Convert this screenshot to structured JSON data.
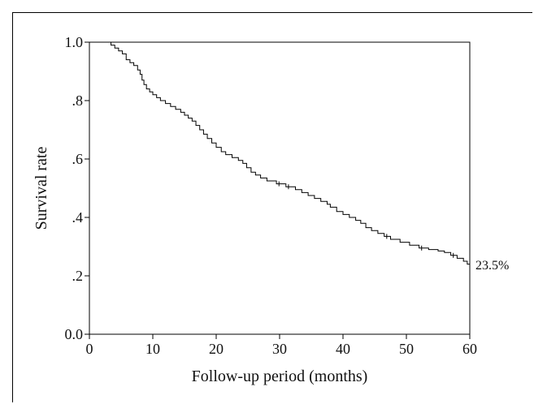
{
  "chart_data": {
    "type": "line",
    "title": "",
    "xlabel": "Follow-up period (months)",
    "ylabel": "Survival rate",
    "xlim": [
      0,
      60
    ],
    "ylim": [
      0,
      1
    ],
    "x_ticks": [
      0,
      10,
      20,
      30,
      40,
      50,
      60
    ],
    "x_tick_labels": [
      "0",
      "10",
      "20",
      "30",
      "40",
      "50",
      "60"
    ],
    "y_ticks": [
      0,
      0.2,
      0.4,
      0.6,
      0.8,
      1.0
    ],
    "y_tick_labels": [
      "0.0",
      ".2",
      ".4",
      ".6",
      ".8",
      "1.0"
    ],
    "grid": false,
    "annotation": {
      "text": "23.5%",
      "x": 60,
      "y": 0.235
    },
    "series": [
      {
        "step": true,
        "x": [
          0,
          2.8,
          3.4,
          4.0,
          4.6,
          5.2,
          5.8,
          6.4,
          7.0,
          7.6,
          8.0,
          8.3,
          8.6,
          9.0,
          9.5,
          10.0,
          10.6,
          11.2,
          12.0,
          12.8,
          13.6,
          14.4,
          15.0,
          15.6,
          16.2,
          16.8,
          17.4,
          18.0,
          18.6,
          19.3,
          20.0,
          20.8,
          21.5,
          22.5,
          23.5,
          24.2,
          24.8,
          25.5,
          26.2,
          27.0,
          28.0,
          29.5,
          31.0,
          32.5,
          33.5,
          34.5,
          35.5,
          36.5,
          37.5,
          38.0,
          39.0,
          40.0,
          41.0,
          42.0,
          42.8,
          43.6,
          44.5,
          45.5,
          46.5,
          47.5,
          49.0,
          50.5,
          52.0,
          53.5,
          55.0,
          56.0,
          57.0,
          58.0,
          59.0,
          59.6,
          60.0
        ],
        "y": [
          1.0,
          1.0,
          0.99,
          0.98,
          0.97,
          0.96,
          0.94,
          0.93,
          0.92,
          0.905,
          0.89,
          0.87,
          0.855,
          0.84,
          0.83,
          0.82,
          0.81,
          0.8,
          0.79,
          0.78,
          0.77,
          0.76,
          0.75,
          0.74,
          0.73,
          0.715,
          0.7,
          0.685,
          0.67,
          0.655,
          0.64,
          0.625,
          0.615,
          0.605,
          0.595,
          0.585,
          0.57,
          0.555,
          0.545,
          0.535,
          0.525,
          0.515,
          0.505,
          0.495,
          0.485,
          0.475,
          0.465,
          0.455,
          0.445,
          0.435,
          0.42,
          0.41,
          0.4,
          0.39,
          0.38,
          0.365,
          0.355,
          0.345,
          0.335,
          0.325,
          0.315,
          0.305,
          0.295,
          0.29,
          0.285,
          0.28,
          0.27,
          0.26,
          0.25,
          0.24,
          0.235
        ]
      }
    ]
  }
}
